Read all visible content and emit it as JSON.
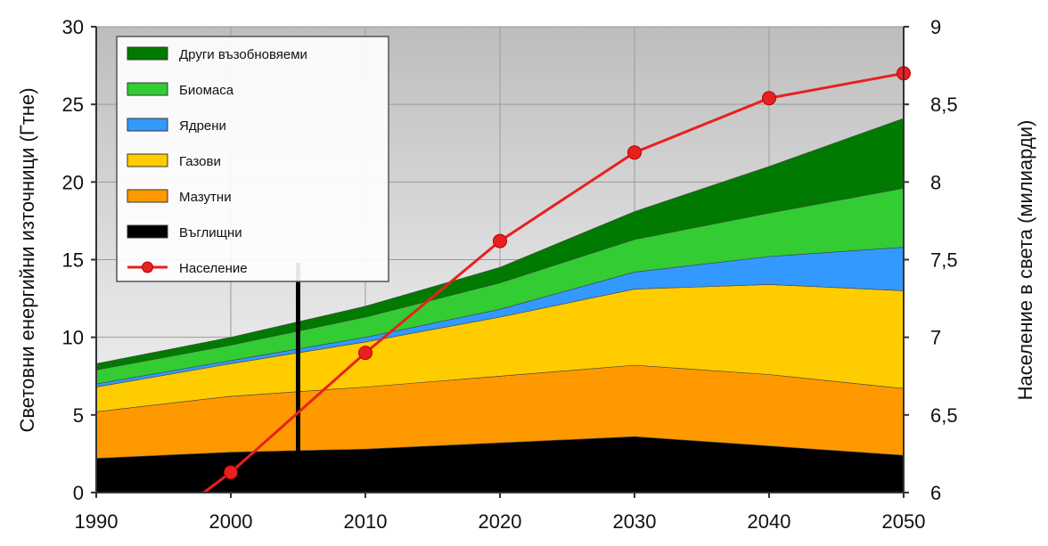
{
  "chart_data": {
    "type": "area",
    "x": [
      1990,
      2000,
      2010,
      2020,
      2030,
      2040,
      2050
    ],
    "x_ticks": [
      "1990",
      "2000",
      "2010",
      "2020",
      "2030",
      "2040",
      "2050"
    ],
    "y_left_ticks": [
      "0",
      "5",
      "10",
      "15",
      "20",
      "25",
      "30"
    ],
    "y_right_ticks": [
      "6",
      "6,5",
      "7",
      "7,5",
      "8",
      "8,5",
      "9"
    ],
    "ylabel_left": "Световни енергийни източници (Гтне)",
    "ylabel_right": "Население в света (милиарди)",
    "ylim_left": [
      0,
      30
    ],
    "ylim_right": [
      6,
      9
    ],
    "grid": true,
    "legend_position": "top-left",
    "series": [
      {
        "name": "Въглищни",
        "color": "#000000",
        "values": [
          2.2,
          2.6,
          2.8,
          3.2,
          3.6,
          3.0,
          2.4
        ]
      },
      {
        "name": "Мазутни",
        "color": "#ff9900",
        "values": [
          3.0,
          3.6,
          4.0,
          4.3,
          4.6,
          4.6,
          4.3
        ]
      },
      {
        "name": "Газови",
        "color": "#ffcc00",
        "values": [
          1.6,
          2.1,
          2.9,
          3.8,
          4.9,
          5.8,
          6.3
        ]
      },
      {
        "name": "Ядрени",
        "color": "#3399ff",
        "values": [
          0.2,
          0.2,
          0.3,
          0.5,
          1.1,
          1.8,
          2.8
        ]
      },
      {
        "name": "Биомаса",
        "color": "#33cc33",
        "values": [
          0.9,
          1.0,
          1.3,
          1.7,
          2.1,
          2.8,
          3.8
        ]
      },
      {
        "name": "Други възобновяеми",
        "color": "#007a00",
        "values": [
          0.4,
          0.5,
          0.7,
          1.0,
          1.8,
          3.0,
          4.5
        ]
      }
    ],
    "population": {
      "name": "Население",
      "color": "#e82020",
      "x": [
        1998,
        2000,
        2010,
        2020,
        2030,
        2040,
        2050
      ],
      "values": [
        6.0,
        6.13,
        6.9,
        7.62,
        8.19,
        8.54,
        8.7
      ],
      "markers_from_index": 1
    },
    "vertical_marker_x": 2005
  }
}
